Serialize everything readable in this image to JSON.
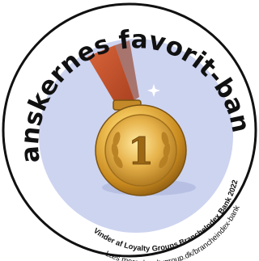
{
  "badge": {
    "title": "Danskernes favorit-bank",
    "subtitle": "Vinder af Loyalty Groups BrancheIndex Bank 2022",
    "link": "Læs mere: loyaltygroup.dk/brancheindex-bank",
    "medal_number": "1",
    "colors": {
      "background": "#ffffff",
      "ring": "#111111",
      "inner_disc": "#cdd4f0",
      "ribbon": "#c9502a",
      "gold": "#e0a93a"
    },
    "icons": [
      "medal-icon",
      "ribbon-icon",
      "laurel-wreath-icon",
      "sparkle-icon"
    ]
  }
}
